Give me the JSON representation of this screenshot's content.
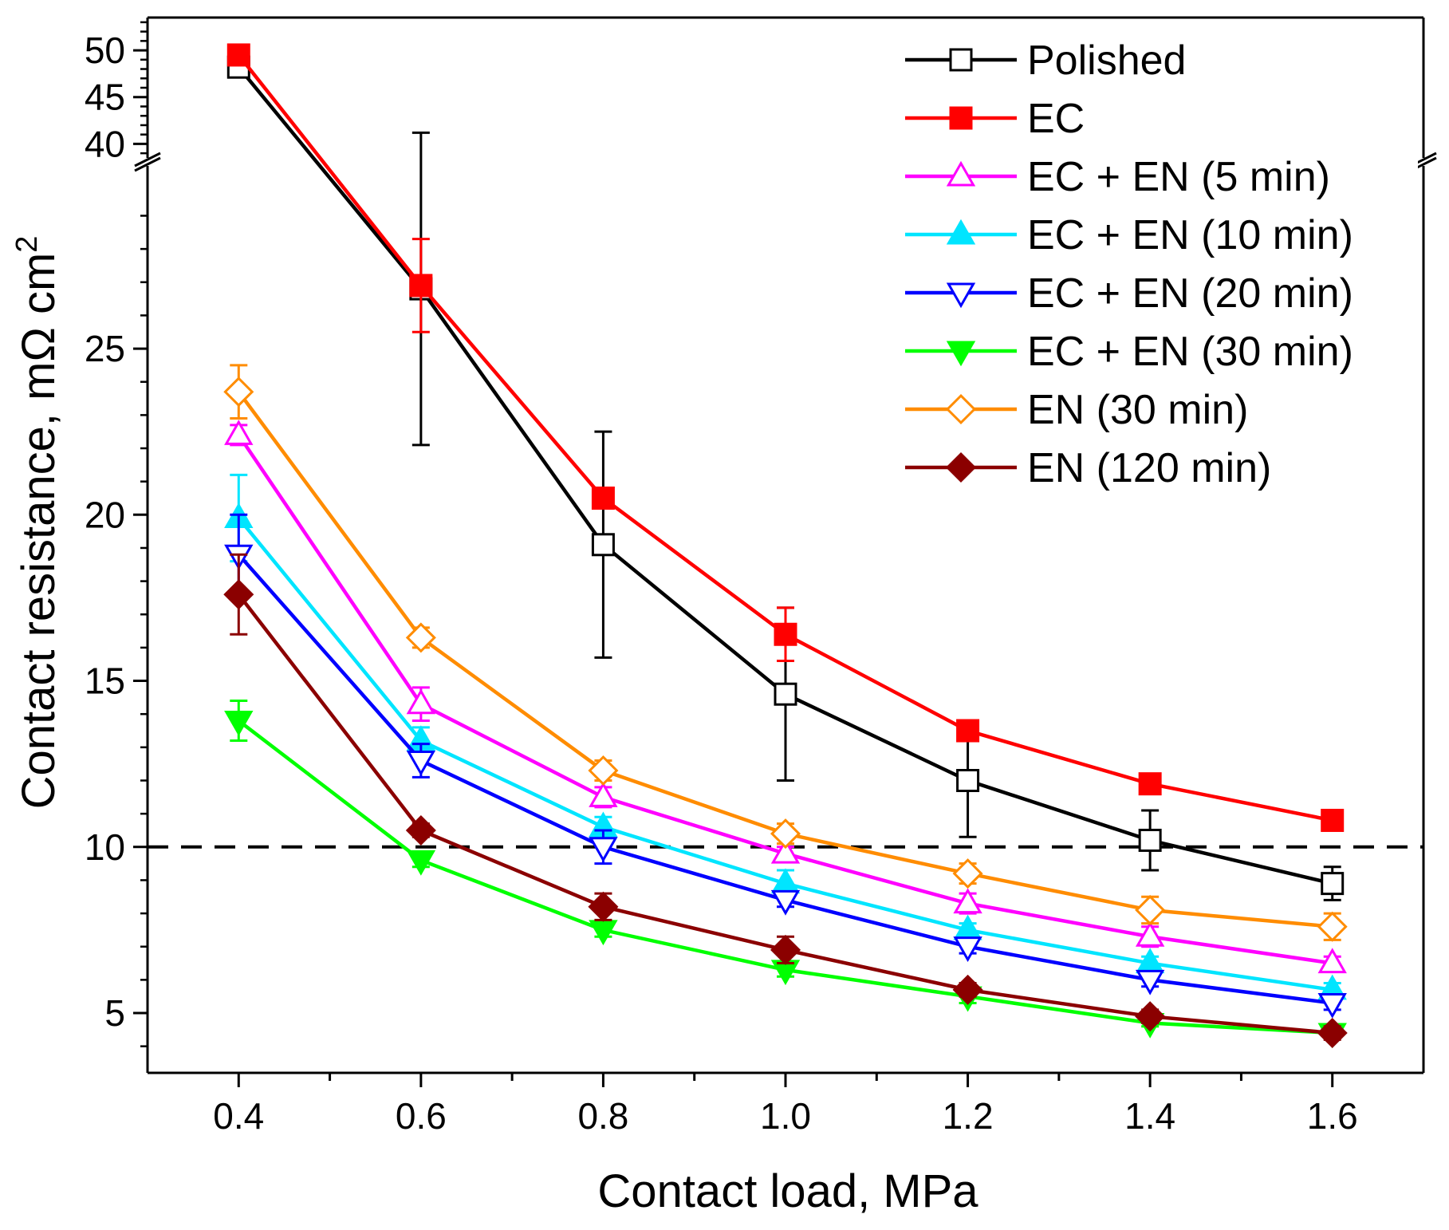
{
  "chart_data": {
    "type": "line",
    "xlabel": "Contact load, MPa",
    "ylabel": "Contact resistance, mΩ cm",
    "ylabel_superscript": "2",
    "x": [
      0.4,
      0.6,
      0.8,
      1.0,
      1.2,
      1.4,
      1.6
    ],
    "x_tick_labels": [
      "0.4",
      "0.6",
      "0.8",
      "1.0",
      "1.2",
      "1.4",
      "1.6"
    ],
    "xlim": [
      0.3,
      1.7
    ],
    "ylim_lower": [
      3.2,
      30.5
    ],
    "ylim_upper": [
      38.5,
      53.5
    ],
    "y_tick_labels_lower": [
      "5",
      "10",
      "15",
      "20",
      "25"
    ],
    "y_tick_labels_upper": [
      "40",
      "45",
      "50"
    ],
    "axis_break": "between 30 and 38",
    "reference_line": {
      "y": 10,
      "style": "dashed",
      "color": "#000000"
    },
    "legend_position": "top-right",
    "series": [
      {
        "name": "Polished",
        "color": "#000000",
        "marker": "square-open",
        "values": [
          48.2,
          26.8,
          19.1,
          14.6,
          12.0,
          10.2,
          8.9
        ],
        "errors": [
          0.6,
          4.7,
          3.4,
          2.6,
          1.7,
          0.9,
          0.5
        ]
      },
      {
        "name": "EC",
        "color": "#ff0000",
        "marker": "square-filled",
        "values": [
          49.5,
          26.9,
          20.5,
          16.4,
          13.5,
          11.9,
          10.8
        ],
        "errors": [
          0.4,
          1.4,
          0.2,
          0.8,
          0.2,
          0.1,
          0.1
        ]
      },
      {
        "name": "EC + EN (5 min)",
        "color": "#ff00ff",
        "marker": "triangle-up-open",
        "values": [
          22.4,
          14.3,
          11.5,
          9.8,
          8.3,
          7.3,
          6.5
        ],
        "errors": [
          0.3,
          0.5,
          0.3,
          0.2,
          0.3,
          0.3,
          0.2
        ]
      },
      {
        "name": "EC + EN (10 min)",
        "color": "#00e5ff",
        "marker": "triangle-up-filled",
        "values": [
          19.9,
          13.2,
          10.6,
          8.9,
          7.5,
          6.5,
          5.7
        ],
        "errors": [
          1.3,
          0.4,
          0.3,
          0.4,
          0.2,
          0.2,
          0.2
        ]
      },
      {
        "name": "EC + EN (20 min)",
        "color": "#0000ff",
        "marker": "triangle-down-open",
        "values": [
          18.8,
          12.6,
          10.0,
          8.4,
          7.0,
          6.0,
          5.3
        ],
        "errors": [
          1.2,
          0.5,
          0.5,
          0.2,
          0.2,
          0.2,
          0.2
        ]
      },
      {
        "name": "EC + EN (30 min)",
        "color": "#00ff00",
        "marker": "triangle-down-filled",
        "values": [
          13.8,
          9.6,
          7.5,
          6.3,
          5.5,
          4.7,
          4.4
        ],
        "errors": [
          0.6,
          0.2,
          0.2,
          0.2,
          0.2,
          0.1,
          0.1
        ]
      },
      {
        "name": "EN (30 min)",
        "color": "#ff8c00",
        "marker": "diamond-open",
        "values": [
          23.7,
          16.3,
          12.3,
          10.4,
          9.2,
          8.1,
          7.6
        ],
        "errors": [
          0.8,
          0.3,
          0.3,
          0.3,
          0.3,
          0.4,
          0.4
        ]
      },
      {
        "name": "EN (120 min)",
        "color": "#8b0000",
        "marker": "diamond-filled",
        "values": [
          17.6,
          10.5,
          8.2,
          6.9,
          5.7,
          4.9,
          4.4
        ],
        "errors": [
          1.2,
          0.2,
          0.4,
          0.4,
          0.2,
          0.2,
          0.2
        ]
      }
    ]
  }
}
